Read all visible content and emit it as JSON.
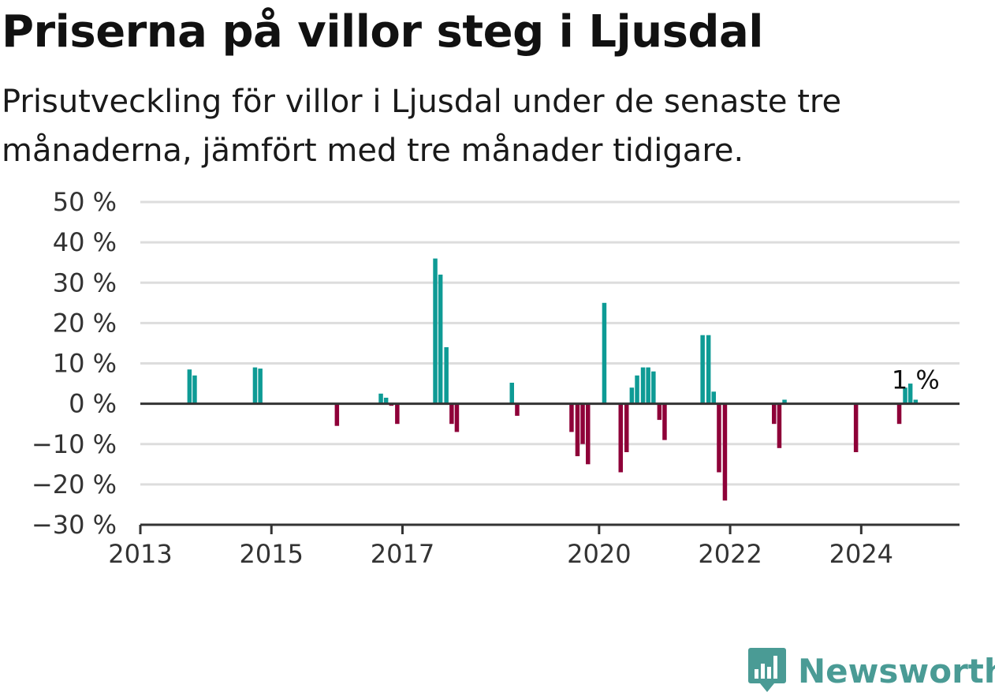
{
  "title": "Priserna på villor steg i Ljusdal",
  "subtitle": "Prisutveckling för villor i Ljusdal under de senaste tre månaderna, jämfört med tre månader tidigare.",
  "brand": "Newsworthy",
  "colors": {
    "positive": "#0e9b95",
    "negative": "#8e0038",
    "grid": "#dddddd",
    "axis": "#333333",
    "brand": "#4a9b95"
  },
  "chart_data": {
    "type": "bar",
    "title": "Priserna på villor steg i Ljusdal",
    "xlabel": "",
    "ylabel": "",
    "ylim": [
      -30,
      50
    ],
    "xlim": [
      2013.0,
      2025.5
    ],
    "grid": true,
    "y_ticks": [
      {
        "value": 50,
        "label": "50 %"
      },
      {
        "value": 40,
        "label": "40 %"
      },
      {
        "value": 30,
        "label": "30 %"
      },
      {
        "value": 20,
        "label": "20 %"
      },
      {
        "value": 10,
        "label": "10 %"
      },
      {
        "value": 0,
        "label": "0 %"
      },
      {
        "value": -10,
        "label": "−10 %"
      },
      {
        "value": -20,
        "label": "−20 %"
      },
      {
        "value": -30,
        "label": "−30 %"
      }
    ],
    "x_ticks": [
      {
        "value": 2013,
        "label": "2013"
      },
      {
        "value": 2015,
        "label": "2015"
      },
      {
        "value": 2017,
        "label": "2017"
      },
      {
        "value": 2020,
        "label": "2020"
      },
      {
        "value": 2022,
        "label": "2022"
      },
      {
        "value": 2024,
        "label": "2024"
      }
    ],
    "last_value_label": "1 %",
    "x": [
      2013.75,
      2013.83,
      2014.75,
      2014.83,
      2016.0,
      2016.67,
      2016.75,
      2016.83,
      2016.92,
      2017.5,
      2017.58,
      2017.67,
      2017.75,
      2017.83,
      2018.67,
      2018.75,
      2019.58,
      2019.67,
      2019.75,
      2019.83,
      2020.08,
      2020.33,
      2020.42,
      2020.5,
      2020.58,
      2020.67,
      2020.75,
      2020.83,
      2020.92,
      2021.0,
      2021.58,
      2021.67,
      2021.75,
      2021.83,
      2021.92,
      2022.67,
      2022.75,
      2022.83,
      2023.92,
      2024.58,
      2024.67,
      2024.75,
      2024.83
    ],
    "values": [
      8.5,
      7,
      9,
      8.7,
      -5.5,
      2.5,
      1.5,
      -0.5,
      -5,
      36,
      32,
      14,
      -5,
      -7,
      5.2,
      -3,
      -7,
      -13,
      -10,
      -15,
      25,
      -17,
      -12,
      4,
      7,
      9,
      9,
      8,
      -4,
      -9,
      17,
      17,
      3,
      -17,
      -24,
      -5,
      -11,
      1,
      -12,
      -5,
      4,
      5,
      1
    ]
  }
}
